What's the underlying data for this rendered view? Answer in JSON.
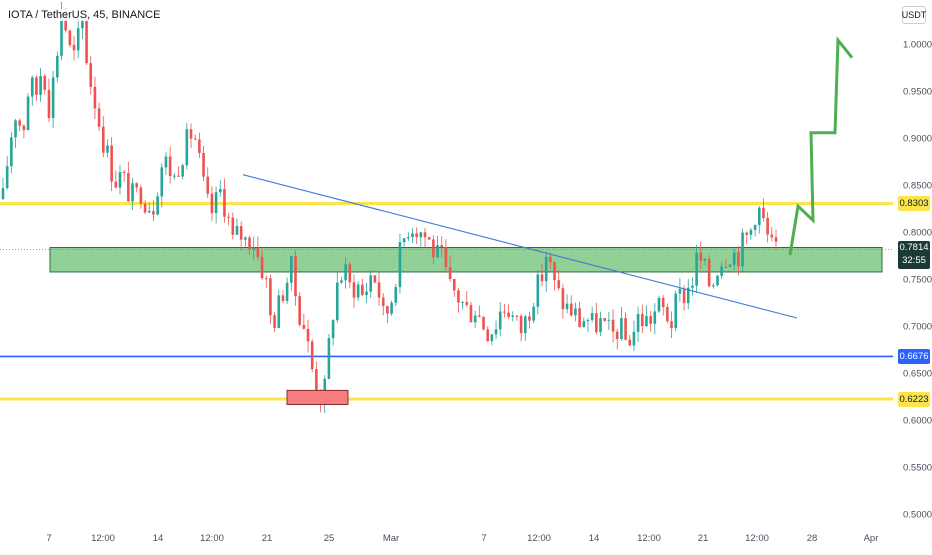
{
  "header": {
    "title": "IOTA / TetherUS, 45, BINANCE",
    "currency": "USDT"
  },
  "chart_data": {
    "type": "candlestick",
    "xlabel": "",
    "ylabel": "",
    "ylim": [
      0.485,
      1.045
    ],
    "x_ticks": [
      "7",
      "12:00",
      "14",
      "12:00",
      "21",
      "25",
      "Mar",
      "7",
      "12:00",
      "14",
      "12:00",
      "21",
      "12:00",
      "28",
      "Apr"
    ],
    "y_ticks": [
      "1.0000",
      "0.9500",
      "0.9000",
      "0.8500",
      "0.8000",
      "0.7500",
      "0.7000",
      "0.6500",
      "0.6000",
      "0.5500",
      "0.5000"
    ],
    "grid": false,
    "colors": {
      "up": "#26a69a",
      "down": "#ef5350",
      "resistance": "#fbe54b",
      "support_line": "#2962ff",
      "zone": "#91d097",
      "trendline": "#3d7bd9",
      "projection": "#4caf50",
      "low_box": "#f77c80"
    },
    "price_levels": [
      {
        "label": "0.8303",
        "value": 0.8303,
        "style": "yellow"
      },
      {
        "label": "0.6676",
        "value": 0.6676,
        "style": "blue"
      },
      {
        "label": "0.6223",
        "value": 0.6223,
        "style": "yellow"
      }
    ],
    "current_price": {
      "label": "0.7814",
      "value": 0.7814,
      "countdown": "32:55"
    },
    "zone": {
      "from_value": 0.7575,
      "to_value": 0.7835
    },
    "low_box": {
      "from_value": 0.6165,
      "to_value": 0.6315
    },
    "trendline": [
      [
        0.861
      ],
      [
        0.7085
      ]
    ],
    "projection_path": [
      0.7755,
      0.8275,
      0.8125,
      0.9055,
      0.9055,
      1.004,
      0.9855
    ],
    "price_path": [
      0.835,
      0.895,
      0.93,
      0.905,
      0.96,
      0.945,
      0.98,
      0.935,
      0.975,
      1.045,
      0.995,
      0.985,
      1.03,
      0.97,
      0.94,
      0.905,
      0.88,
      0.855,
      0.86,
      0.845,
      0.835,
      0.845,
      0.83,
      0.83,
      0.87,
      0.875,
      0.855,
      0.88,
      0.895,
      0.91,
      0.87,
      0.83,
      0.82,
      0.845,
      0.825,
      0.79,
      0.8,
      0.79,
      0.795,
      0.77,
      0.755,
      0.7,
      0.72,
      0.745,
      0.76,
      0.72,
      0.7,
      0.66,
      0.63,
      0.625,
      0.7,
      0.745,
      0.76,
      0.74,
      0.745,
      0.73,
      0.755,
      0.75,
      0.71,
      0.72,
      0.76,
      0.79,
      0.81,
      0.805,
      0.8,
      0.79,
      0.775,
      0.77,
      0.74,
      0.735,
      0.725,
      0.715,
      0.72,
      0.705,
      0.695,
      0.7,
      0.72,
      0.72,
      0.705,
      0.695,
      0.71,
      0.735,
      0.745,
      0.78,
      0.745,
      0.73,
      0.72,
      0.715,
      0.705,
      0.71,
      0.7,
      0.705,
      0.695,
      0.69,
      0.7,
      0.685,
      0.69,
      0.71,
      0.705,
      0.71,
      0.72,
      0.715,
      0.705,
      0.73,
      0.735,
      0.745,
      0.775,
      0.76,
      0.74,
      0.765,
      0.775,
      0.78,
      0.775,
      0.79,
      0.8,
      0.83,
      0.81,
      0.785,
      0.78
    ]
  }
}
